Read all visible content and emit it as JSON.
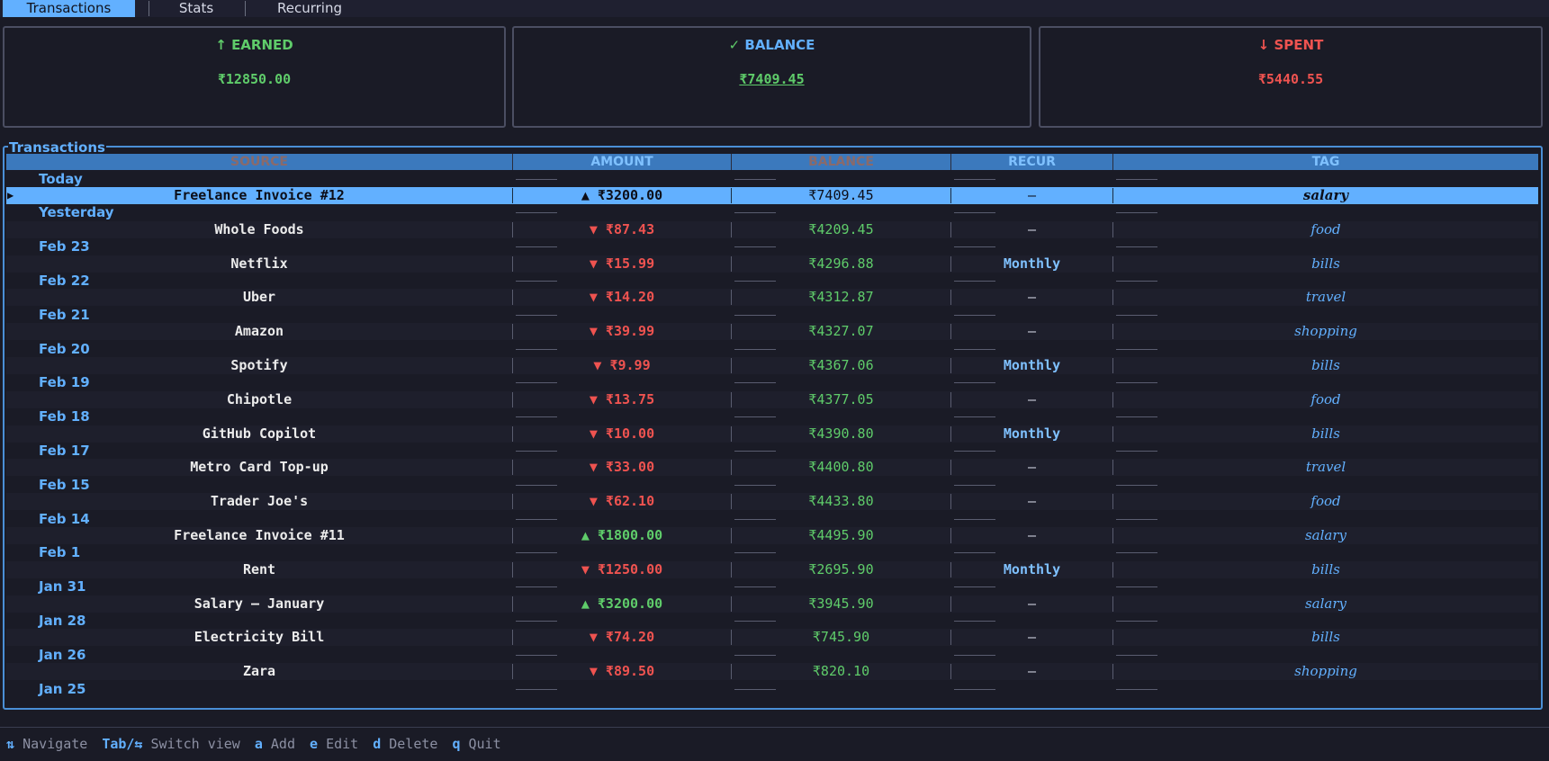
{
  "tabs": [
    {
      "label": "Transactions",
      "active": true
    },
    {
      "label": "Stats",
      "active": false
    },
    {
      "label": "Recurring",
      "active": false
    }
  ],
  "summary": {
    "earned": {
      "icon": "↑",
      "label": "EARNED",
      "value": "₹12850.00"
    },
    "balance": {
      "icon": "✓",
      "label": "BALANCE",
      "value": "₹7409.45"
    },
    "spent": {
      "icon": "↓",
      "label": "SPENT",
      "value": "₹5440.55"
    }
  },
  "transactions_panel": {
    "title": "Transactions",
    "columns": [
      "SOURCE",
      "AMOUNT",
      "BALANCE",
      "RECUR",
      "TAG"
    ],
    "rows": [
      {
        "date": "Today",
        "source": "Freelance Invoice #12",
        "direction": "up",
        "amount": "▲ ₹3200.00",
        "balance": "₹7409.45",
        "recur": "–",
        "tag": "salary",
        "selected": true
      },
      {
        "date": "Yesterday",
        "source": "Whole Foods",
        "direction": "down",
        "amount": "▼ ₹87.43",
        "balance": "₹4209.45",
        "recur": "–",
        "tag": "food"
      },
      {
        "date": "Feb 23",
        "source": "Netflix",
        "direction": "down",
        "amount": "▼ ₹15.99",
        "balance": "₹4296.88",
        "recur": "Monthly",
        "tag": "bills"
      },
      {
        "date": "Feb 22",
        "source": "Uber",
        "direction": "down",
        "amount": "▼ ₹14.20",
        "balance": "₹4312.87",
        "recur": "–",
        "tag": "travel"
      },
      {
        "date": "Feb 21",
        "source": "Amazon",
        "direction": "down",
        "amount": "▼ ₹39.99",
        "balance": "₹4327.07",
        "recur": "–",
        "tag": "shopping"
      },
      {
        "date": "Feb 20",
        "source": "Spotify",
        "direction": "down",
        "amount": "▼ ₹9.99",
        "balance": "₹4367.06",
        "recur": "Monthly",
        "tag": "bills"
      },
      {
        "date": "Feb 19",
        "source": "Chipotle",
        "direction": "down",
        "amount": "▼ ₹13.75",
        "balance": "₹4377.05",
        "recur": "–",
        "tag": "food"
      },
      {
        "date": "Feb 18",
        "source": "GitHub Copilot",
        "direction": "down",
        "amount": "▼ ₹10.00",
        "balance": "₹4390.80",
        "recur": "Monthly",
        "tag": "bills"
      },
      {
        "date": "Feb 17",
        "source": "Metro Card Top-up",
        "direction": "down",
        "amount": "▼ ₹33.00",
        "balance": "₹4400.80",
        "recur": "–",
        "tag": "travel"
      },
      {
        "date": "Feb 15",
        "source": "Trader Joe's",
        "direction": "down",
        "amount": "▼ ₹62.10",
        "balance": "₹4433.80",
        "recur": "–",
        "tag": "food"
      },
      {
        "date": "Feb 14",
        "source": "Freelance Invoice #11",
        "direction": "up",
        "amount": "▲ ₹1800.00",
        "balance": "₹4495.90",
        "recur": "–",
        "tag": "salary"
      },
      {
        "date": "Feb 1",
        "source": "Rent",
        "direction": "down",
        "amount": "▼ ₹1250.00",
        "balance": "₹2695.90",
        "recur": "Monthly",
        "tag": "bills"
      },
      {
        "date": "Jan 31",
        "source": "Salary – January",
        "direction": "up",
        "amount": "▲ ₹3200.00",
        "balance": "₹3945.90",
        "recur": "–",
        "tag": "salary"
      },
      {
        "date": "Jan 28",
        "source": "Electricity Bill",
        "direction": "down",
        "amount": "▼ ₹74.20",
        "balance": "₹745.90",
        "recur": "–",
        "tag": "bills"
      },
      {
        "date": "Jan 26",
        "source": "Zara",
        "direction": "down",
        "amount": "▼ ₹89.50",
        "balance": "₹820.10",
        "recur": "–",
        "tag": "shopping"
      }
    ],
    "trailing_date": "Jan 25"
  },
  "footer": [
    {
      "key": "⇅",
      "desc": "Navigate"
    },
    {
      "key": "Tab/⇆",
      "desc": "Switch view"
    },
    {
      "key": "a",
      "desc": "Add"
    },
    {
      "key": "e",
      "desc": "Edit"
    },
    {
      "key": "d",
      "desc": "Delete"
    },
    {
      "key": "q",
      "desc": "Quit"
    }
  ],
  "colors": {
    "accent": "#62b0ff",
    "income": "#5fcc6a",
    "expense": "#ef5350",
    "background": "#1a1b26"
  }
}
